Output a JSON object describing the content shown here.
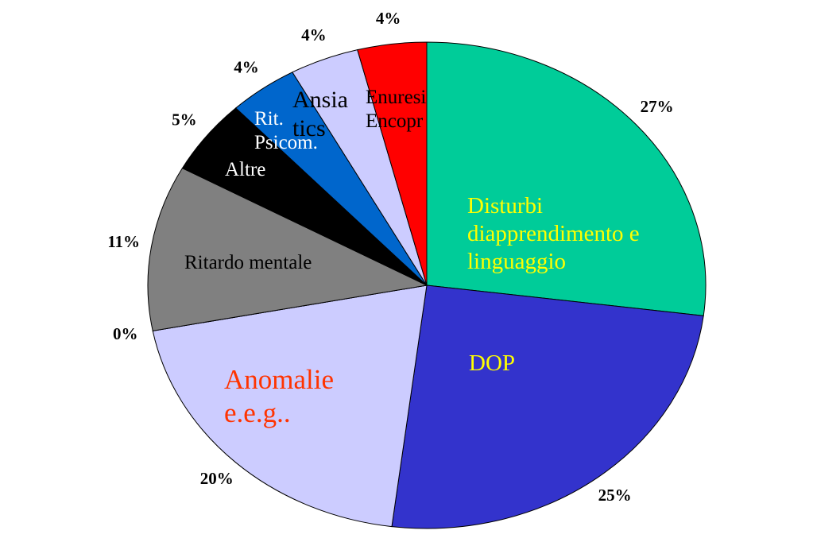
{
  "chart_data": {
    "type": "pie",
    "categories": [
      "Disturbi diapprendimento  e linguaggio",
      "DOP",
      "Anomalie e.e.g..",
      null,
      "Ritardo mentale",
      "Altre",
      "Rit. Psicom.",
      "Ansia tics",
      "Enuresi Encopr"
    ],
    "values": [
      27,
      25,
      20,
      0,
      11,
      5,
      4,
      4,
      4
    ],
    "value_labels": [
      "27%",
      "25%",
      "20%",
      "0%",
      "11%",
      "5%",
      "4%",
      "4%",
      "4%"
    ],
    "colors": [
      "#00CC99",
      "#3333CC",
      "#CCCCFF",
      "#CCCCFF",
      "#808080",
      "#000000",
      "#0066CC",
      "#CCCCFF",
      "#FF0000"
    ],
    "label_colors": [
      "#FFFF00",
      "#FFFF00",
      "#FF3300",
      "#000000",
      "#000000",
      "#FFFFFF",
      "#FFFFFF",
      "#000000",
      "#000000"
    ]
  }
}
